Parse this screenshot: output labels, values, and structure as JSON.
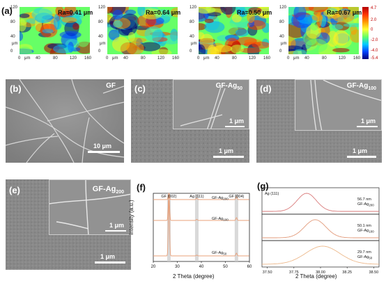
{
  "panel_labels": {
    "a": "(a)",
    "b": "(b)",
    "c": "(c)",
    "d": "(d)",
    "e": "(e)",
    "f": "(f)",
    "g": "(g)"
  },
  "afm": {
    "y_ticks": [
      "120",
      "80",
      "40",
      "0"
    ],
    "y_unit": "μm",
    "x_ticks": [
      "0",
      "μm",
      "40",
      "80",
      "120",
      "160"
    ],
    "maps": [
      {
        "ra": "Ra=0.41 μm"
      },
      {
        "ra": "Ra=0.64 μm"
      },
      {
        "ra": "Ra=0.50 μm"
      },
      {
        "ra": "Ra=0.67 μm"
      }
    ],
    "colorbar_ticks": [
      "4.7",
      "2.0",
      "0",
      "-2.0",
      "-4.0",
      "-5.4"
    ]
  },
  "sem": {
    "b": {
      "title": "GF",
      "scale": "10 μm"
    },
    "c": {
      "title_main": "GF-Ag",
      "title_sub": "50",
      "scale_inset": "1 μm",
      "scale": "1 μm"
    },
    "d": {
      "title_main": "GF-Ag",
      "title_sub": "100",
      "scale_inset": "1 μm",
      "scale": "1 μm"
    },
    "e": {
      "title_main": "GF-Ag",
      "title_sub": "200",
      "scale_inset": "1 μm",
      "scale": "1 μm"
    }
  },
  "chart_data": [
    {
      "type": "line",
      "panel": "f",
      "xlabel": "2 Theta (degree)",
      "ylabel": "Intensity (a.u.)",
      "xlim": [
        20,
        60
      ],
      "x_ticks": [
        "20",
        "30",
        "40",
        "50",
        "60"
      ],
      "peak_labels": [
        {
          "text": "GF (002)",
          "x": 26.5
        },
        {
          "text": "Ag (111)",
          "x": 38.1
        },
        {
          "text": "GF (004)",
          "x": 54.6
        }
      ],
      "highlight_bands": [
        26.5,
        38.1,
        54.6
      ],
      "series": [
        {
          "name": "GF-Ag200",
          "label_main": "GF-Ag",
          "label_sub": "200",
          "color": "#e8a07a",
          "offset": 2.0,
          "peaks": [
            [
              26.5,
              2.0
            ],
            [
              38.1,
              0.05
            ],
            [
              54.6,
              0.1
            ]
          ]
        },
        {
          "name": "GF-Ag100",
          "label_main": "GF-Ag",
          "label_sub": "100",
          "color": "#e8a07a",
          "offset": 1.0,
          "peaks": [
            [
              26.5,
              2.0
            ],
            [
              38.1,
              0.04
            ],
            [
              54.6,
              0.1
            ]
          ]
        },
        {
          "name": "GF-Ag50",
          "label_main": "GF-Ag",
          "label_sub": "50",
          "color": "#e8a07a",
          "offset": 0.0,
          "peaks": [
            [
              26.5,
              2.0
            ],
            [
              38.1,
              0.03
            ],
            [
              54.6,
              0.1
            ]
          ]
        }
      ]
    },
    {
      "type": "line",
      "panel": "g",
      "xlabel": "2 Theta (degree)",
      "xlim": [
        37.45,
        38.55
      ],
      "x_ticks": [
        "37.50",
        "37.75",
        "38.00",
        "38.25",
        "38.50"
      ],
      "tick_values": [
        37.5,
        37.75,
        38.0,
        38.25,
        38.5
      ],
      "peak_label": "Ag (111)",
      "series": [
        {
          "name": "GF-Ag200",
          "size": "56.7 nm",
          "label_main": "GF-Ag",
          "label_sub": "200",
          "center": 37.87,
          "width": 0.09,
          "color": "#d97a7a"
        },
        {
          "name": "GF-Ag100",
          "size": "50.1 nm",
          "label_main": "GF-Ag",
          "label_sub": "100",
          "center": 37.95,
          "width": 0.1,
          "color": "#e29a7a"
        },
        {
          "name": "GF-Ag50",
          "size": "29.7 nm",
          "label_main": "GF-Ag",
          "label_sub": "50",
          "center": 38.02,
          "width": 0.16,
          "color": "#edb88a"
        }
      ]
    }
  ]
}
